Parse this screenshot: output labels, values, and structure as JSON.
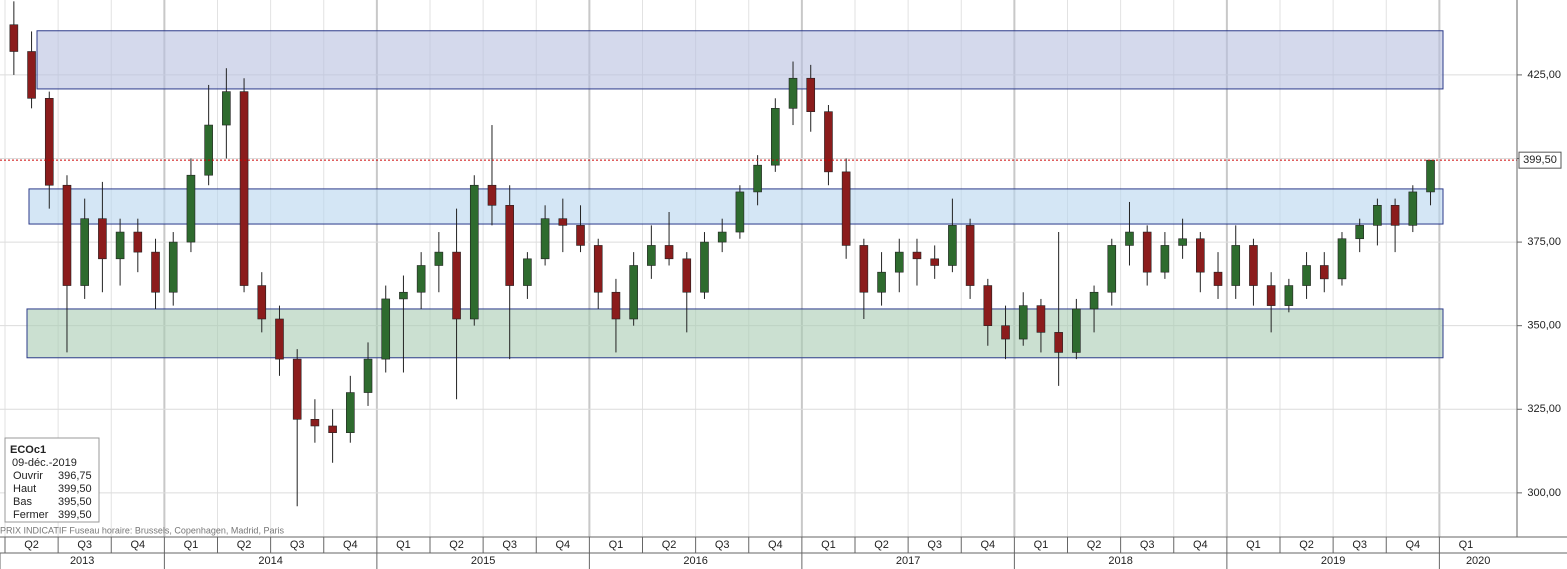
{
  "chart_data": {
    "type": "candlestick",
    "open": [
      440,
      432,
      418,
      392,
      362,
      382,
      370,
      378,
      372,
      360,
      375,
      395,
      410,
      420,
      362,
      352,
      340,
      322,
      320,
      318,
      330,
      340,
      358,
      360,
      368,
      372,
      352,
      392,
      386,
      362,
      370,
      382,
      380,
      374,
      360,
      352,
      368,
      374,
      370,
      360,
      375,
      378,
      390,
      398,
      415,
      424,
      414,
      396,
      374,
      360,
      366,
      372,
      370,
      368,
      380,
      362,
      350,
      346,
      356,
      348,
      342,
      355,
      360,
      374,
      378,
      366,
      374,
      376,
      366,
      362,
      374,
      362,
      356,
      362,
      368,
      364,
      376,
      380,
      386,
      380,
      390
    ],
    "high": [
      447,
      438,
      420,
      395,
      388,
      393,
      382,
      382,
      376,
      378,
      400,
      422,
      427,
      424,
      366,
      356,
      343,
      328,
      325,
      335,
      345,
      362,
      365,
      372,
      378,
      385,
      395,
      410,
      392,
      372,
      386,
      388,
      386,
      376,
      364,
      372,
      380,
      384,
      372,
      378,
      382,
      392,
      401,
      418,
      429,
      428,
      416,
      400,
      376,
      372,
      376,
      376,
      374,
      388,
      382,
      364,
      356,
      360,
      358,
      378,
      358,
      362,
      376,
      387,
      380,
      378,
      382,
      378,
      372,
      380,
      376,
      366,
      364,
      372,
      372,
      378,
      382,
      388,
      388,
      392,
      399.5
    ],
    "low": [
      425,
      415,
      385,
      342,
      358,
      360,
      362,
      366,
      355,
      356,
      372,
      392,
      400,
      360,
      348,
      335,
      296,
      315,
      309,
      315,
      326,
      336,
      336,
      355,
      360,
      328,
      350,
      380,
      340,
      358,
      368,
      372,
      372,
      355,
      342,
      350,
      364,
      368,
      348,
      358,
      372,
      376,
      386,
      396,
      410,
      408,
      392,
      370,
      352,
      356,
      360,
      362,
      364,
      366,
      358,
      344,
      340,
      344,
      342,
      332,
      340,
      348,
      356,
      368,
      362,
      364,
      370,
      360,
      358,
      358,
      356,
      348,
      354,
      358,
      360,
      362,
      372,
      374,
      372,
      378,
      386
    ],
    "close": [
      432,
      418,
      392,
      362,
      382,
      370,
      378,
      372,
      360,
      375,
      395,
      410,
      420,
      362,
      352,
      340,
      322,
      320,
      318,
      330,
      340,
      358,
      360,
      368,
      372,
      352,
      392,
      386,
      362,
      370,
      382,
      380,
      374,
      360,
      352,
      368,
      374,
      370,
      360,
      375,
      378,
      390,
      398,
      415,
      424,
      414,
      396,
      374,
      360,
      366,
      372,
      370,
      368,
      380,
      362,
      350,
      346,
      356,
      348,
      342,
      355,
      360,
      374,
      378,
      366,
      374,
      376,
      366,
      362,
      374,
      362,
      356,
      362,
      368,
      364,
      376,
      380,
      386,
      380,
      390,
      399.5
    ],
    "up_color": "#2e6b2e",
    "down_color": "#8b1c1c",
    "ylim": [
      286.8,
      447.4
    ],
    "yticks": [
      {
        "value": 300,
        "label": "300,00"
      },
      {
        "value": 325,
        "label": "325,00"
      },
      {
        "value": 350,
        "label": "350,00"
      },
      {
        "value": 375,
        "label": "375,00"
      },
      {
        "value": 400,
        "label": "400,00"
      },
      {
        "value": 425,
        "label": "425,00"
      }
    ],
    "grid": true,
    "last_price": {
      "value": 399.5,
      "label": "399,50",
      "color": "#cc0000"
    },
    "zones": [
      {
        "low": 420.8,
        "high": 438.2,
        "color": "#b8bfdf"
      },
      {
        "low": 380.4,
        "high": 390.9,
        "color": "#b7d6ef"
      },
      {
        "low": 340.4,
        "high": 355,
        "color": "#a9cbb2"
      }
    ],
    "quarters": [
      "Q2",
      "Q3",
      "Q4",
      "Q1",
      "Q2",
      "Q3",
      "Q4",
      "Q1",
      "Q2",
      "Q3",
      "Q4",
      "Q1",
      "Q2",
      "Q3",
      "Q4",
      "Q1",
      "Q2",
      "Q3",
      "Q4",
      "Q1",
      "Q2",
      "Q3",
      "Q4",
      "Q1",
      "Q2",
      "Q3",
      "Q4",
      "Q1"
    ],
    "years": [
      "2013",
      "2014",
      "2015",
      "2016",
      "2017",
      "2018",
      "2019",
      "2020"
    ]
  },
  "info_box": {
    "symbol": "ECOc1",
    "date": "09-déc.-2019",
    "rows": [
      [
        "Ouvrir",
        "396,75"
      ],
      [
        "Haut",
        "399,50"
      ],
      [
        "Bas",
        "395,50"
      ],
      [
        "Fermer",
        "399,50"
      ]
    ]
  },
  "footer": "PRIX INDICATIF   Fuseau horaire: Brussels, Copenhagen, Madrid, Paris"
}
